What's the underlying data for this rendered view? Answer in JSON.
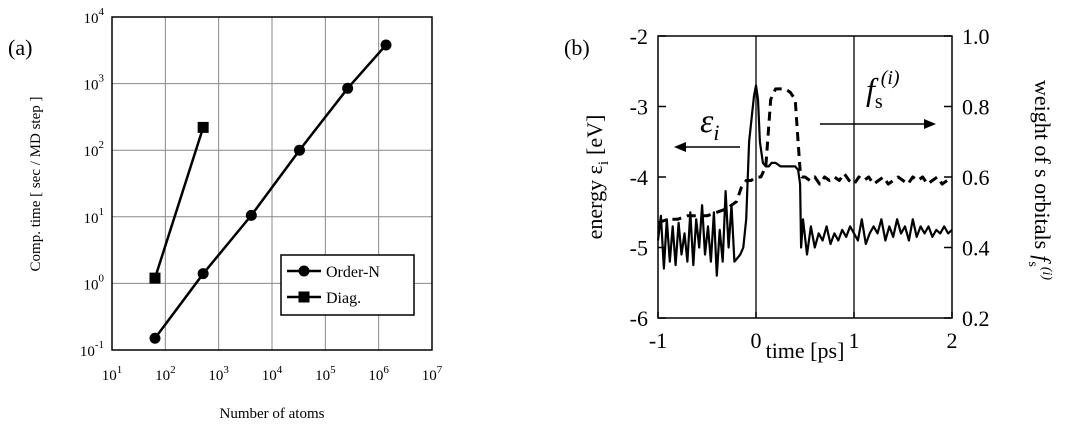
{
  "chart_data": [
    {
      "panel_label": "(a)",
      "type": "line",
      "xscale": "log",
      "yscale": "log",
      "xlabel": "Number of atoms",
      "ylabel": "Comp. time [ sec / MD step ]",
      "xlim": [
        10,
        10000000
      ],
      "ylim": [
        0.1,
        10000
      ],
      "grid": true,
      "legend_position": "lower-right",
      "x_ticks": [
        {
          "value": 10,
          "base": "10",
          "exp": "1"
        },
        {
          "value": 100,
          "base": "10",
          "exp": "2"
        },
        {
          "value": 1000,
          "base": "10",
          "exp": "3"
        },
        {
          "value": 10000,
          "base": "10",
          "exp": "4"
        },
        {
          "value": 100000,
          "base": "10",
          "exp": "5"
        },
        {
          "value": 1000000,
          "base": "10",
          "exp": "6"
        },
        {
          "value": 10000000,
          "base": "10",
          "exp": "7"
        }
      ],
      "y_ticks": [
        {
          "value": 0.1,
          "base": "10",
          "exp": "-1"
        },
        {
          "value": 1,
          "base": "10",
          "exp": "0"
        },
        {
          "value": 10,
          "base": "10",
          "exp": "1"
        },
        {
          "value": 100,
          "base": "10",
          "exp": "2"
        },
        {
          "value": 1000,
          "base": "10",
          "exp": "3"
        },
        {
          "value": 10000,
          "base": "10",
          "exp": "4"
        }
      ],
      "series": [
        {
          "name": "Order-N",
          "marker": "circle",
          "x": [
            64,
            512,
            4096,
            32768,
            262144,
            1372000
          ],
          "y": [
            0.15,
            1.4,
            10.5,
            100,
            850,
            3800
          ]
        },
        {
          "name": "Diag.",
          "marker": "square",
          "x": [
            64,
            512
          ],
          "y": [
            1.2,
            220
          ]
        }
      ]
    },
    {
      "panel_label": "(b)",
      "type": "line",
      "xlabel": "time [ps]",
      "ylabel_left": "energy ε",
      "ylabel_left_sub": "i",
      "ylabel_left_unit": "[eV]",
      "ylabel_right": "weight of s orbitals",
      "ylabel_right_symbol": "f",
      "ylabel_right_sub": "s",
      "ylabel_right_sup": "(i)",
      "xlim": [
        -1,
        2
      ],
      "ylim_left": [
        -6,
        -2
      ],
      "ylim_right": [
        0.2,
        1.0
      ],
      "x_ticks": [
        "-1",
        "0",
        "1",
        "2"
      ],
      "y_ticks_left": [
        "-2",
        "-3",
        "-4",
        "-5",
        "-6"
      ],
      "y_ticks_right": [
        "1.0",
        "0.8",
        "0.6",
        "0.4",
        "0.2"
      ],
      "annotations": {
        "left_arrow_symbol": "ε",
        "left_arrow_sub": "i",
        "right_arrow_symbol": "f",
        "right_arrow_sub": "s",
        "right_arrow_sup": "(i)"
      },
      "series": [
        {
          "axis": "left",
          "style": "solid",
          "x": [
            -1.0,
            -0.97,
            -0.94,
            -0.91,
            -0.88,
            -0.85,
            -0.82,
            -0.79,
            -0.76,
            -0.73,
            -0.7,
            -0.67,
            -0.64,
            -0.61,
            -0.58,
            -0.55,
            -0.52,
            -0.49,
            -0.46,
            -0.43,
            -0.4,
            -0.37,
            -0.34,
            -0.31,
            -0.28,
            -0.25,
            -0.22,
            -0.19,
            -0.16,
            -0.13,
            -0.1,
            -0.07,
            -0.04,
            -0.02,
            0.0,
            0.02,
            0.04,
            0.07,
            0.1,
            0.13,
            0.16,
            0.2,
            0.25,
            0.3,
            0.35,
            0.4,
            0.43,
            0.45,
            0.46,
            0.48,
            0.52,
            0.56,
            0.6,
            0.64,
            0.68,
            0.72,
            0.76,
            0.8,
            0.84,
            0.88,
            0.92,
            0.96,
            1.0,
            1.04,
            1.08,
            1.12,
            1.16,
            1.2,
            1.24,
            1.28,
            1.32,
            1.36,
            1.4,
            1.44,
            1.48,
            1.52,
            1.56,
            1.6,
            1.64,
            1.68,
            1.72,
            1.76,
            1.8,
            1.84,
            1.88,
            1.92,
            1.96,
            2.0
          ],
          "y": [
            -4.9,
            -4.55,
            -5.3,
            -4.6,
            -5.2,
            -4.7,
            -5.25,
            -4.65,
            -5.1,
            -4.8,
            -5.2,
            -4.5,
            -5.25,
            -4.6,
            -5.0,
            -4.4,
            -5.1,
            -4.7,
            -5.2,
            -4.5,
            -5.4,
            -4.75,
            -5.2,
            -4.2,
            -5.0,
            -4.4,
            -5.2,
            -5.15,
            -5.1,
            -5.0,
            -4.6,
            -3.5,
            -3.1,
            -2.85,
            -2.7,
            -2.9,
            -3.5,
            -3.8,
            -3.85,
            -3.85,
            -3.8,
            -3.8,
            -3.85,
            -3.85,
            -3.85,
            -3.85,
            -3.9,
            -4.1,
            -5.0,
            -4.6,
            -5.1,
            -4.7,
            -5.0,
            -4.8,
            -4.9,
            -4.7,
            -4.95,
            -4.8,
            -4.9,
            -4.75,
            -4.85,
            -4.7,
            -4.8,
            -4.9,
            -4.6,
            -4.95,
            -4.8,
            -4.7,
            -4.8,
            -4.6,
            -4.9,
            -4.7,
            -4.85,
            -4.6,
            -4.8,
            -4.7,
            -4.9,
            -4.6,
            -4.85,
            -4.7,
            -4.8,
            -4.7,
            -4.85,
            -4.75,
            -4.8,
            -4.7,
            -4.8,
            -4.75
          ]
        },
        {
          "axis": "right",
          "style": "dashed",
          "x": [
            -1.0,
            -0.9,
            -0.8,
            -0.7,
            -0.6,
            -0.5,
            -0.4,
            -0.3,
            -0.25,
            -0.2,
            -0.15,
            -0.1,
            -0.05,
            0.0,
            0.05,
            0.1,
            0.15,
            0.2,
            0.25,
            0.3,
            0.35,
            0.4,
            0.43,
            0.45,
            0.47,
            0.5,
            0.55,
            0.6,
            0.65,
            0.7,
            0.75,
            0.8,
            0.85,
            0.9,
            0.95,
            1.0,
            1.05,
            1.1,
            1.15,
            1.2,
            1.25,
            1.3,
            1.35,
            1.4,
            1.45,
            1.5,
            1.55,
            1.6,
            1.65,
            1.7,
            1.75,
            1.8,
            1.85,
            1.9,
            1.95,
            2.0
          ],
          "y": [
            0.47,
            0.48,
            0.48,
            0.49,
            0.49,
            0.49,
            0.5,
            0.51,
            0.52,
            0.53,
            0.57,
            0.59,
            0.59,
            0.6,
            0.6,
            0.63,
            0.82,
            0.85,
            0.85,
            0.85,
            0.84,
            0.82,
            0.7,
            0.62,
            0.6,
            0.6,
            0.59,
            0.6,
            0.58,
            0.6,
            0.59,
            0.6,
            0.59,
            0.61,
            0.59,
            0.58,
            0.6,
            0.59,
            0.6,
            0.58,
            0.59,
            0.6,
            0.58,
            0.59,
            0.6,
            0.59,
            0.58,
            0.6,
            0.59,
            0.6,
            0.58,
            0.59,
            0.6,
            0.58,
            0.59,
            0.58
          ]
        }
      ]
    }
  ]
}
